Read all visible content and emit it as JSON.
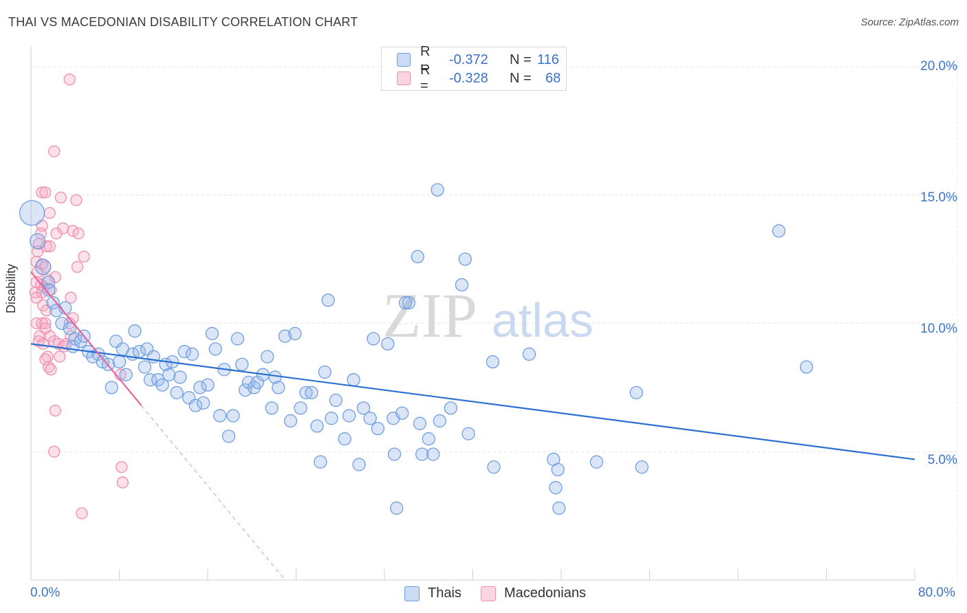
{
  "title": "THAI VS MACEDONIAN DISABILITY CORRELATION CHART",
  "source": "Source: ZipAtlas.com",
  "watermark": {
    "part1": "ZIP",
    "part2": "atlas"
  },
  "legend_top": [
    {
      "r_label": "R =",
      "r_value": "-0.372",
      "n_label": "N =",
      "n_value": "116"
    },
    {
      "r_label": "R =",
      "r_value": "-0.328",
      "n_label": "N =",
      "n_value": "68"
    }
  ],
  "legend_bottom": [
    {
      "label": "Thais"
    },
    {
      "label": "Macedonians"
    }
  ],
  "y_axis": {
    "label": "Disability",
    "ticks": [
      "20.0%",
      "15.0%",
      "10.0%",
      "5.0%"
    ]
  },
  "x_axis": {
    "min_label": "0.0%",
    "max_label": "80.0%"
  },
  "colors": {
    "thais_fill": "rgba(148,184,236,0.35)",
    "thais_stroke": "#6f9ee0",
    "thais_line": "#2b6fd1",
    "mac_fill": "rgba(246,170,196,0.35)",
    "mac_stroke": "#ee8fb2",
    "mac_line": "#e8649a",
    "accent_text": "#3b73c8"
  },
  "chart_data": {
    "type": "scatter",
    "title": "THAI VS MACEDONIAN DISABILITY CORRELATION CHART",
    "xlabel": "",
    "ylabel": "Disability",
    "xlim": [
      0,
      80
    ],
    "ylim": [
      0,
      20.5
    ],
    "y_ticks": [
      5,
      10,
      15,
      20
    ],
    "x_ticks": [
      0,
      80
    ],
    "grid": true,
    "series": [
      {
        "name": "Thais",
        "R": -0.372,
        "N": 116,
        "trend": {
          "x": [
            0,
            80
          ],
          "y": [
            9.2,
            4.7
          ]
        },
        "points": [
          [
            0.1,
            14.3
          ],
          [
            0.6,
            13.2
          ],
          [
            1.1,
            12.2
          ],
          [
            1.6,
            11.6
          ],
          [
            1.6,
            11.3
          ],
          [
            2.0,
            10.8
          ],
          [
            2.3,
            10.5
          ],
          [
            3.1,
            10.6
          ],
          [
            2.8,
            10.0
          ],
          [
            3.5,
            9.8
          ],
          [
            4.0,
            9.4
          ],
          [
            3.8,
            9.1
          ],
          [
            4.5,
            9.3
          ],
          [
            4.8,
            9.5
          ],
          [
            5.2,
            8.9
          ],
          [
            5.6,
            8.7
          ],
          [
            6.1,
            8.8
          ],
          [
            6.5,
            8.5
          ],
          [
            7.0,
            8.4
          ],
          [
            7.3,
            7.5
          ],
          [
            7.7,
            9.3
          ],
          [
            8.0,
            8.5
          ],
          [
            8.3,
            9.0
          ],
          [
            8.6,
            8.0
          ],
          [
            9.2,
            8.8
          ],
          [
            9.4,
            9.7
          ],
          [
            9.8,
            8.9
          ],
          [
            10.3,
            8.3
          ],
          [
            10.5,
            9.0
          ],
          [
            10.8,
            7.8
          ],
          [
            11.1,
            8.7
          ],
          [
            11.5,
            7.8
          ],
          [
            11.9,
            7.6
          ],
          [
            12.2,
            8.4
          ],
          [
            12.5,
            8.0
          ],
          [
            12.8,
            8.5
          ],
          [
            13.2,
            7.3
          ],
          [
            13.5,
            7.9
          ],
          [
            13.9,
            8.9
          ],
          [
            14.3,
            7.1
          ],
          [
            14.6,
            8.8
          ],
          [
            14.9,
            6.8
          ],
          [
            15.3,
            7.5
          ],
          [
            15.6,
            6.9
          ],
          [
            16.0,
            7.6
          ],
          [
            16.4,
            9.6
          ],
          [
            16.7,
            9.0
          ],
          [
            17.1,
            6.4
          ],
          [
            17.5,
            8.2
          ],
          [
            17.9,
            5.6
          ],
          [
            18.3,
            6.4
          ],
          [
            18.7,
            9.4
          ],
          [
            19.1,
            8.4
          ],
          [
            19.4,
            7.4
          ],
          [
            19.7,
            7.7
          ],
          [
            20.2,
            7.5
          ],
          [
            20.5,
            7.7
          ],
          [
            21.0,
            8.0
          ],
          [
            21.4,
            8.7
          ],
          [
            21.8,
            6.7
          ],
          [
            22.1,
            7.9
          ],
          [
            22.4,
            7.5
          ],
          [
            23.0,
            9.5
          ],
          [
            23.5,
            6.2
          ],
          [
            23.9,
            9.6
          ],
          [
            24.4,
            6.7
          ],
          [
            24.9,
            7.3
          ],
          [
            25.4,
            7.3
          ],
          [
            25.9,
            6.0
          ],
          [
            26.6,
            8.1
          ],
          [
            26.2,
            4.6
          ],
          [
            26.9,
            10.9
          ],
          [
            27.2,
            6.3
          ],
          [
            27.6,
            7.0
          ],
          [
            28.4,
            5.5
          ],
          [
            28.8,
            6.4
          ],
          [
            29.2,
            7.8
          ],
          [
            29.7,
            4.5
          ],
          [
            30.1,
            6.7
          ],
          [
            30.7,
            6.3
          ],
          [
            31.0,
            9.4
          ],
          [
            31.4,
            5.9
          ],
          [
            32.3,
            9.2
          ],
          [
            32.8,
            6.3
          ],
          [
            32.9,
            4.9
          ],
          [
            33.1,
            2.8
          ],
          [
            33.6,
            6.5
          ],
          [
            33.9,
            10.8
          ],
          [
            34.2,
            10.8
          ],
          [
            35.0,
            12.6
          ],
          [
            35.2,
            6.1
          ],
          [
            35.4,
            4.9
          ],
          [
            36.0,
            5.5
          ],
          [
            36.4,
            4.9
          ],
          [
            36.8,
            15.2
          ],
          [
            37.0,
            6.2
          ],
          [
            38.0,
            6.7
          ],
          [
            39.0,
            11.5
          ],
          [
            39.3,
            12.5
          ],
          [
            39.6,
            5.7
          ],
          [
            41.8,
            8.5
          ],
          [
            41.9,
            4.4
          ],
          [
            45.1,
            8.8
          ],
          [
            47.3,
            4.7
          ],
          [
            47.5,
            3.6
          ],
          [
            47.7,
            4.3
          ],
          [
            47.8,
            2.8
          ],
          [
            51.2,
            4.6
          ],
          [
            54.8,
            7.3
          ],
          [
            55.3,
            4.4
          ],
          [
            67.7,
            13.6
          ],
          [
            70.2,
            8.3
          ]
        ]
      },
      {
        "name": "Macedonians",
        "R": -0.328,
        "N": 68,
        "trend": {
          "x": [
            0,
            10
          ],
          "y": [
            12.0,
            6.8
          ]
        },
        "trend_dashed": {
          "x": [
            10,
            23
          ],
          "y": [
            6.8,
            0
          ]
        },
        "points": [
          [
            3.5,
            19.5
          ],
          [
            2.1,
            16.7
          ],
          [
            1.0,
            15.1
          ],
          [
            1.3,
            15.1
          ],
          [
            2.7,
            14.9
          ],
          [
            4.1,
            14.8
          ],
          [
            1.7,
            14.3
          ],
          [
            1.0,
            13.8
          ],
          [
            2.9,
            13.7
          ],
          [
            3.8,
            13.6
          ],
          [
            4.3,
            13.5
          ],
          [
            0.9,
            13.5
          ],
          [
            2.3,
            13.5
          ],
          [
            0.7,
            13.1
          ],
          [
            1.4,
            13.0
          ],
          [
            1.7,
            13.0
          ],
          [
            0.6,
            12.8
          ],
          [
            4.8,
            12.6
          ],
          [
            0.5,
            12.4
          ],
          [
            1.0,
            12.3
          ],
          [
            1.3,
            12.2
          ],
          [
            4.2,
            12.2
          ],
          [
            0.6,
            12.0
          ],
          [
            1.5,
            11.7
          ],
          [
            2.2,
            11.8
          ],
          [
            0.5,
            11.6
          ],
          [
            0.9,
            11.5
          ],
          [
            1.2,
            11.4
          ],
          [
            0.4,
            11.2
          ],
          [
            1.0,
            11.2
          ],
          [
            1.8,
            11.3
          ],
          [
            0.5,
            11.0
          ],
          [
            3.6,
            11.0
          ],
          [
            1.1,
            10.7
          ],
          [
            1.4,
            10.5
          ],
          [
            3.8,
            10.2
          ],
          [
            0.5,
            10.0
          ],
          [
            1.0,
            10.0
          ],
          [
            1.3,
            10.0
          ],
          [
            3.5,
            10.0
          ],
          [
            1.3,
            9.8
          ],
          [
            0.8,
            9.5
          ],
          [
            1.7,
            9.5
          ],
          [
            2.1,
            9.3
          ],
          [
            0.7,
            9.3
          ],
          [
            3.6,
            9.5
          ],
          [
            1.1,
            9.2
          ],
          [
            2.5,
            9.2
          ],
          [
            3.0,
            9.1
          ],
          [
            3.2,
            9.2
          ],
          [
            2.6,
            8.7
          ],
          [
            1.5,
            8.7
          ],
          [
            1.3,
            8.6
          ],
          [
            1.6,
            8.3
          ],
          [
            1.8,
            8.2
          ],
          [
            8.1,
            8.0
          ],
          [
            2.2,
            6.6
          ],
          [
            2.1,
            5.0
          ],
          [
            8.2,
            4.4
          ],
          [
            8.3,
            3.8
          ],
          [
            4.6,
            2.6
          ]
        ]
      }
    ]
  }
}
